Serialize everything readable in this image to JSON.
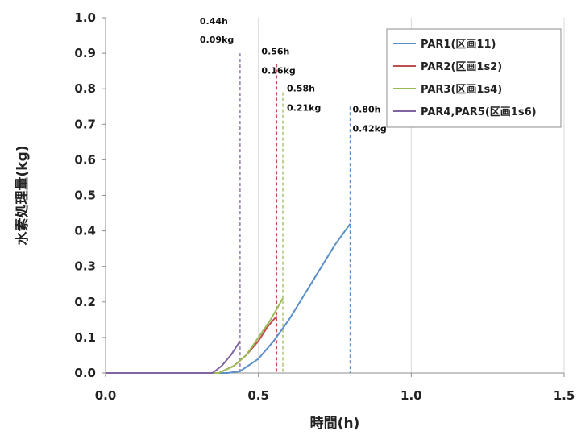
{
  "chart_data": {
    "type": "line",
    "title": "",
    "xlabel": "時間(h)",
    "ylabel": "水素処理量(kg)",
    "xlim": [
      0.0,
      1.5
    ],
    "ylim": [
      0.0,
      1.0
    ],
    "x_ticks": [
      "0.0",
      "0.5",
      "1.0",
      "1.5"
    ],
    "y_ticks": [
      "0.0",
      "0.1",
      "0.2",
      "0.3",
      "0.4",
      "0.5",
      "0.6",
      "0.7",
      "0.8",
      "0.9",
      "1.0"
    ],
    "grid": "vertical",
    "legend_position": "top-right",
    "series": [
      {
        "name": "PAR1(区画11)",
        "color": "#5b8fc7",
        "x": [
          0.0,
          0.4,
          0.44,
          0.5,
          0.55,
          0.6,
          0.65,
          0.7,
          0.75,
          0.8
        ],
        "y": [
          0.0,
          0.0,
          0.005,
          0.04,
          0.09,
          0.15,
          0.22,
          0.29,
          0.36,
          0.42
        ]
      },
      {
        "name": "PAR2(区画1s2)",
        "color": "#c0504d",
        "x": [
          0.0,
          0.37,
          0.42,
          0.46,
          0.5,
          0.53,
          0.56
        ],
        "y": [
          0.0,
          0.0,
          0.02,
          0.05,
          0.09,
          0.13,
          0.16
        ]
      },
      {
        "name": "PAR3(区画1s4)",
        "color": "#9bbb59",
        "x": [
          0.0,
          0.37,
          0.42,
          0.46,
          0.5,
          0.54,
          0.58
        ],
        "y": [
          0.0,
          0.0,
          0.02,
          0.05,
          0.1,
          0.15,
          0.21
        ]
      },
      {
        "name": "PAR4,PAR5(区画1s6)",
        "color": "#8064a2",
        "x": [
          0.0,
          0.35,
          0.38,
          0.41,
          0.44
        ],
        "y": [
          0.0,
          0.0,
          0.02,
          0.05,
          0.09
        ]
      }
    ],
    "annotations": [
      {
        "x": 0.44,
        "top": 0.9,
        "time_label": "0.44h",
        "amount_label": "0.09kg",
        "color": "#8064a2"
      },
      {
        "x": 0.56,
        "top": 0.87,
        "time_label": "0.56h",
        "amount_label": "0.16kg",
        "color": "#c0504d"
      },
      {
        "x": 0.58,
        "top": 0.79,
        "time_label": "0.58h",
        "amount_label": "0.21kg",
        "color": "#9bbb59"
      },
      {
        "x": 0.8,
        "top": 0.75,
        "time_label": "0.80h",
        "amount_label": "0.42kg",
        "color": "#5b8fc7"
      }
    ]
  }
}
